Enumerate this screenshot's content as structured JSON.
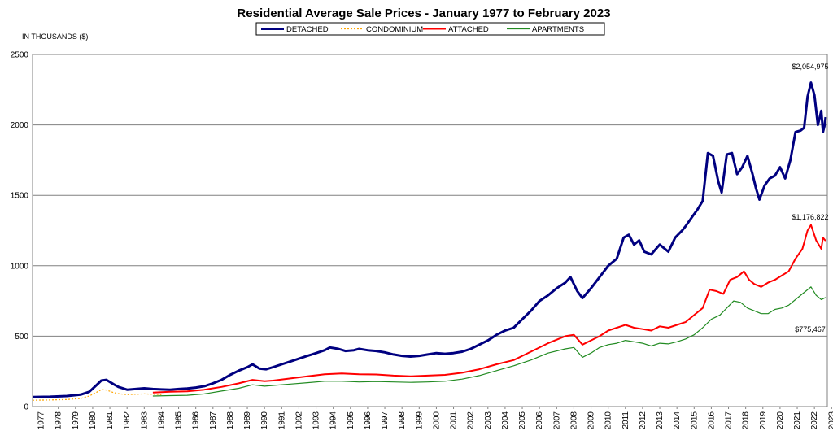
{
  "chart_data": {
    "type": "line",
    "title": "Residential Average Sale Prices  -  January 1977 to February 2023",
    "ylabel": "IN THOUSANDS ($)",
    "ylim": [
      0,
      2500
    ],
    "yticks": [
      "0",
      "500",
      "1000",
      "1500",
      "2000",
      "2500"
    ],
    "xlim": [
      1977.0,
      2023.25
    ],
    "years": [
      "1977",
      "1978",
      "1979",
      "1980",
      "1981",
      "1982",
      "1983",
      "1984",
      "1985",
      "1986",
      "1987",
      "1988",
      "1989",
      "1990",
      "1991",
      "1992",
      "1993",
      "1994",
      "1995",
      "1996",
      "1997",
      "1998",
      "1999",
      "2000",
      "2001",
      "2002",
      "2003",
      "2004",
      "2005",
      "2006",
      "2007",
      "2008",
      "2009",
      "2010",
      "2011",
      "2012",
      "2013",
      "2014",
      "2015",
      "2016",
      "2017",
      "2018",
      "2019",
      "2020",
      "2021",
      "2022",
      "2023"
    ],
    "grid": "horizontal",
    "legend_position": "top-center",
    "series": [
      {
        "name": "DETACHED",
        "color": "#000080",
        "style": "solid",
        "points": [
          [
            1977.0,
            68
          ],
          [
            1978.0,
            70
          ],
          [
            1979.0,
            75
          ],
          [
            1979.8,
            85
          ],
          [
            1980.3,
            105
          ],
          [
            1980.7,
            150
          ],
          [
            1981.0,
            185
          ],
          [
            1981.3,
            190
          ],
          [
            1981.7,
            160
          ],
          [
            1982.0,
            140
          ],
          [
            1982.5,
            120
          ],
          [
            1983.0,
            125
          ],
          [
            1983.5,
            130
          ],
          [
            1984.0,
            125
          ],
          [
            1984.5,
            122
          ],
          [
            1985.0,
            120
          ],
          [
            1985.5,
            125
          ],
          [
            1986.0,
            128
          ],
          [
            1986.5,
            135
          ],
          [
            1987.0,
            145
          ],
          [
            1987.5,
            165
          ],
          [
            1988.0,
            190
          ],
          [
            1988.5,
            225
          ],
          [
            1989.0,
            255
          ],
          [
            1989.5,
            280
          ],
          [
            1989.8,
            300
          ],
          [
            1990.2,
            270
          ],
          [
            1990.6,
            265
          ],
          [
            1991.0,
            280
          ],
          [
            1991.5,
            300
          ],
          [
            1992.0,
            320
          ],
          [
            1992.5,
            340
          ],
          [
            1993.0,
            360
          ],
          [
            1993.5,
            380
          ],
          [
            1994.0,
            400
          ],
          [
            1994.3,
            420
          ],
          [
            1994.8,
            410
          ],
          [
            1995.2,
            395
          ],
          [
            1995.7,
            400
          ],
          [
            1996.0,
            410
          ],
          [
            1996.5,
            400
          ],
          [
            1997.0,
            395
          ],
          [
            1997.5,
            385
          ],
          [
            1998.0,
            370
          ],
          [
            1998.5,
            360
          ],
          [
            1999.0,
            355
          ],
          [
            1999.5,
            360
          ],
          [
            2000.0,
            370
          ],
          [
            2000.5,
            380
          ],
          [
            2001.0,
            375
          ],
          [
            2001.5,
            380
          ],
          [
            2002.0,
            390
          ],
          [
            2002.5,
            410
          ],
          [
            2003.0,
            440
          ],
          [
            2003.5,
            470
          ],
          [
            2004.0,
            510
          ],
          [
            2004.5,
            540
          ],
          [
            2005.0,
            560
          ],
          [
            2005.5,
            620
          ],
          [
            2006.0,
            680
          ],
          [
            2006.5,
            750
          ],
          [
            2007.0,
            790
          ],
          [
            2007.5,
            840
          ],
          [
            2008.0,
            880
          ],
          [
            2008.3,
            920
          ],
          [
            2008.7,
            820
          ],
          [
            2009.0,
            770
          ],
          [
            2009.5,
            840
          ],
          [
            2010.0,
            920
          ],
          [
            2010.5,
            1000
          ],
          [
            2011.0,
            1050
          ],
          [
            2011.4,
            1200
          ],
          [
            2011.7,
            1220
          ],
          [
            2012.0,
            1150
          ],
          [
            2012.3,
            1180
          ],
          [
            2012.6,
            1100
          ],
          [
            2013.0,
            1080
          ],
          [
            2013.5,
            1150
          ],
          [
            2014.0,
            1100
          ],
          [
            2014.4,
            1200
          ],
          [
            2014.8,
            1250
          ],
          [
            2015.0,
            1280
          ],
          [
            2015.4,
            1350
          ],
          [
            2015.7,
            1400
          ],
          [
            2016.0,
            1460
          ],
          [
            2016.3,
            1800
          ],
          [
            2016.6,
            1780
          ],
          [
            2016.9,
            1600
          ],
          [
            2017.1,
            1520
          ],
          [
            2017.4,
            1790
          ],
          [
            2017.7,
            1800
          ],
          [
            2018.0,
            1650
          ],
          [
            2018.3,
            1700
          ],
          [
            2018.6,
            1780
          ],
          [
            2018.9,
            1650
          ],
          [
            2019.1,
            1550
          ],
          [
            2019.3,
            1470
          ],
          [
            2019.6,
            1570
          ],
          [
            2019.9,
            1620
          ],
          [
            2020.2,
            1640
          ],
          [
            2020.5,
            1700
          ],
          [
            2020.8,
            1620
          ],
          [
            2021.1,
            1750
          ],
          [
            2021.4,
            1950
          ],
          [
            2021.7,
            1960
          ],
          [
            2021.9,
            1980
          ],
          [
            2022.1,
            2200
          ],
          [
            2022.3,
            2300
          ],
          [
            2022.5,
            2210
          ],
          [
            2022.7,
            2000
          ],
          [
            2022.9,
            2100
          ],
          [
            2023.0,
            1950
          ],
          [
            2023.1,
            2000
          ],
          [
            2023.15,
            2055
          ]
        ],
        "end_label": "$2,054,975"
      },
      {
        "name": "CONDOMINIUM",
        "color": "#FFA500",
        "style": "dotted",
        "points": [
          [
            1977.0,
            45
          ],
          [
            1978.0,
            47
          ],
          [
            1979.0,
            50
          ],
          [
            1979.8,
            58
          ],
          [
            1980.3,
            75
          ],
          [
            1980.7,
            100
          ],
          [
            1981.0,
            120
          ],
          [
            1981.3,
            118
          ],
          [
            1981.7,
            100
          ],
          [
            1982.0,
            92
          ],
          [
            1982.5,
            85
          ],
          [
            1983.0,
            88
          ],
          [
            1983.5,
            90
          ],
          [
            1984.0,
            88
          ],
          [
            1984.5,
            85
          ]
        ]
      },
      {
        "name": "ATTACHED",
        "color": "#FF0000",
        "style": "solid",
        "points": [
          [
            1984.0,
            100
          ],
          [
            1985.0,
            105
          ],
          [
            1986.0,
            108
          ],
          [
            1987.0,
            120
          ],
          [
            1988.0,
            140
          ],
          [
            1989.0,
            165
          ],
          [
            1989.8,
            190
          ],
          [
            1990.5,
            180
          ],
          [
            1991.0,
            185
          ],
          [
            1992.0,
            200
          ],
          [
            1993.0,
            215
          ],
          [
            1994.0,
            230
          ],
          [
            1995.0,
            235
          ],
          [
            1996.0,
            230
          ],
          [
            1997.0,
            228
          ],
          [
            1998.0,
            220
          ],
          [
            1999.0,
            215
          ],
          [
            2000.0,
            220
          ],
          [
            2001.0,
            225
          ],
          [
            2002.0,
            240
          ],
          [
            2003.0,
            265
          ],
          [
            2004.0,
            300
          ],
          [
            2005.0,
            330
          ],
          [
            2006.0,
            390
          ],
          [
            2007.0,
            450
          ],
          [
            2008.0,
            500
          ],
          [
            2008.5,
            510
          ],
          [
            2009.0,
            440
          ],
          [
            2009.5,
            470
          ],
          [
            2010.0,
            500
          ],
          [
            2010.5,
            540
          ],
          [
            2011.0,
            560
          ],
          [
            2011.5,
            580
          ],
          [
            2012.0,
            560
          ],
          [
            2012.5,
            550
          ],
          [
            2013.0,
            540
          ],
          [
            2013.5,
            570
          ],
          [
            2014.0,
            560
          ],
          [
            2014.5,
            580
          ],
          [
            2015.0,
            600
          ],
          [
            2015.5,
            650
          ],
          [
            2016.0,
            700
          ],
          [
            2016.4,
            830
          ],
          [
            2016.8,
            820
          ],
          [
            2017.2,
            800
          ],
          [
            2017.6,
            900
          ],
          [
            2018.0,
            920
          ],
          [
            2018.4,
            960
          ],
          [
            2018.7,
            900
          ],
          [
            2019.0,
            870
          ],
          [
            2019.4,
            850
          ],
          [
            2019.8,
            880
          ],
          [
            2020.2,
            900
          ],
          [
            2020.6,
            930
          ],
          [
            2021.0,
            960
          ],
          [
            2021.4,
            1050
          ],
          [
            2021.8,
            1120
          ],
          [
            2022.1,
            1250
          ],
          [
            2022.3,
            1290
          ],
          [
            2022.6,
            1180
          ],
          [
            2022.9,
            1120
          ],
          [
            2023.0,
            1200
          ],
          [
            2023.15,
            1177
          ]
        ],
        "end_label": "$1,176,822"
      },
      {
        "name": "APARTMENTS",
        "color": "#228B22",
        "style": "solid",
        "points": [
          [
            1984.0,
            75
          ],
          [
            1985.0,
            78
          ],
          [
            1986.0,
            80
          ],
          [
            1987.0,
            90
          ],
          [
            1988.0,
            110
          ],
          [
            1989.0,
            130
          ],
          [
            1989.8,
            155
          ],
          [
            1990.5,
            145
          ],
          [
            1991.0,
            150
          ],
          [
            1992.0,
            160
          ],
          [
            1993.0,
            170
          ],
          [
            1994.0,
            180
          ],
          [
            1995.0,
            180
          ],
          [
            1996.0,
            175
          ],
          [
            1997.0,
            178
          ],
          [
            1998.0,
            175
          ],
          [
            1999.0,
            172
          ],
          [
            2000.0,
            175
          ],
          [
            2001.0,
            180
          ],
          [
            2002.0,
            195
          ],
          [
            2003.0,
            220
          ],
          [
            2004.0,
            255
          ],
          [
            2005.0,
            290
          ],
          [
            2006.0,
            330
          ],
          [
            2007.0,
            380
          ],
          [
            2008.0,
            410
          ],
          [
            2008.5,
            420
          ],
          [
            2009.0,
            350
          ],
          [
            2009.5,
            380
          ],
          [
            2010.0,
            420
          ],
          [
            2010.5,
            440
          ],
          [
            2011.0,
            450
          ],
          [
            2011.5,
            470
          ],
          [
            2012.0,
            460
          ],
          [
            2012.5,
            450
          ],
          [
            2013.0,
            430
          ],
          [
            2013.5,
            450
          ],
          [
            2014.0,
            445
          ],
          [
            2014.5,
            460
          ],
          [
            2015.0,
            480
          ],
          [
            2015.5,
            510
          ],
          [
            2016.0,
            560
          ],
          [
            2016.5,
            620
          ],
          [
            2017.0,
            650
          ],
          [
            2017.4,
            700
          ],
          [
            2017.8,
            750
          ],
          [
            2018.2,
            740
          ],
          [
            2018.6,
            700
          ],
          [
            2019.0,
            680
          ],
          [
            2019.4,
            660
          ],
          [
            2019.8,
            660
          ],
          [
            2020.2,
            690
          ],
          [
            2020.6,
            700
          ],
          [
            2021.0,
            720
          ],
          [
            2021.4,
            760
          ],
          [
            2021.8,
            800
          ],
          [
            2022.0,
            820
          ],
          [
            2022.3,
            850
          ],
          [
            2022.6,
            790
          ],
          [
            2022.9,
            760
          ],
          [
            2023.15,
            775
          ]
        ],
        "end_label": "$775,467"
      }
    ]
  }
}
